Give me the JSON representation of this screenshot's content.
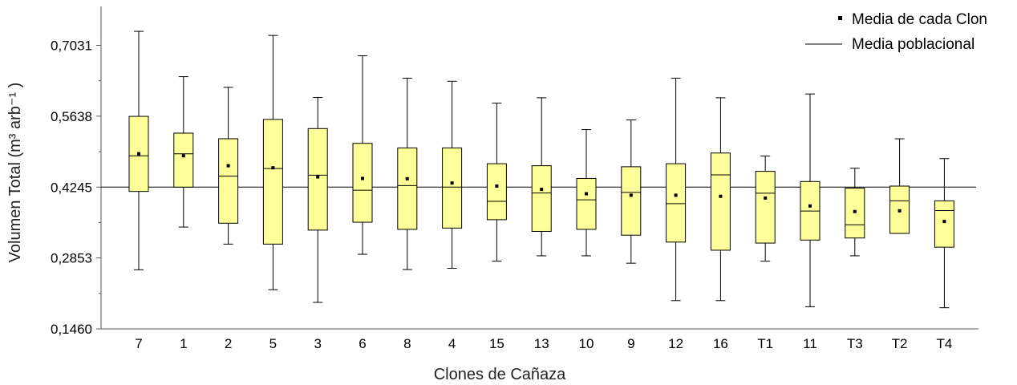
{
  "chart_data": {
    "type": "box",
    "xlabel": "Clones de Cañaza",
    "ylabel": "Volumen Total (m³ arb⁻¹ )",
    "ylim": [
      0.146,
      0.7795
    ],
    "yticks": [
      "0,1460",
      "0,2853",
      "0,4245",
      "0,5638",
      "0,7031"
    ],
    "reference_line": {
      "name": "Media poblacional",
      "value": 0.4245
    },
    "legend": {
      "placement": "top-right",
      "entries": [
        "Media de cada Clon",
        "Media poblacional"
      ]
    },
    "categories": [
      "7",
      "1",
      "2",
      "5",
      "3",
      "6",
      "8",
      "4",
      "15",
      "13",
      "10",
      "9",
      "12",
      "16",
      "T1",
      "11",
      "T3",
      "T2",
      "T4"
    ],
    "boxes": [
      {
        "label": "7",
        "min": 0.262,
        "q1": 0.416,
        "median": 0.486,
        "q3": 0.5635,
        "max": 0.7305,
        "mean": 0.49
      },
      {
        "label": "1",
        "min": 0.346,
        "q1": 0.4245,
        "median": 0.49,
        "q3": 0.5305,
        "max": 0.6415,
        "mean": 0.486
      },
      {
        "label": "2",
        "min": 0.3125,
        "q1": 0.3535,
        "median": 0.446,
        "q3": 0.5195,
        "max": 0.6205,
        "mean": 0.4665
      },
      {
        "label": "5",
        "min": 0.223,
        "q1": 0.3125,
        "median": 0.461,
        "q3": 0.5575,
        "max": 0.7225,
        "mean": 0.4625
      },
      {
        "label": "3",
        "min": 0.198,
        "q1": 0.34,
        "median": 0.448,
        "q3": 0.5395,
        "max": 0.6005,
        "mean": 0.4445
      },
      {
        "label": "6",
        "min": 0.2925,
        "q1": 0.3555,
        "median": 0.4185,
        "q3": 0.5105,
        "max": 0.6825,
        "mean": 0.4415
      },
      {
        "label": "8",
        "min": 0.2625,
        "q1": 0.3415,
        "median": 0.4275,
        "q3": 0.5015,
        "max": 0.6385,
        "mean": 0.441
      },
      {
        "label": "4",
        "min": 0.265,
        "q1": 0.344,
        "median": 0.4245,
        "q3": 0.5015,
        "max": 0.6325,
        "mean": 0.4325
      },
      {
        "label": "15",
        "min": 0.279,
        "q1": 0.3605,
        "median": 0.3965,
        "q3": 0.4705,
        "max": 0.5895,
        "mean": 0.4265
      },
      {
        "label": "13",
        "min": 0.2895,
        "q1": 0.3375,
        "median": 0.413,
        "q3": 0.4665,
        "max": 0.6,
        "mean": 0.42
      },
      {
        "label": "10",
        "min": 0.2895,
        "q1": 0.3415,
        "median": 0.3995,
        "q3": 0.4415,
        "max": 0.5375,
        "mean": 0.4115
      },
      {
        "label": "9",
        "min": 0.275,
        "q1": 0.33,
        "median": 0.414,
        "q3": 0.4645,
        "max": 0.5565,
        "mean": 0.4085
      },
      {
        "label": "12",
        "min": 0.2015,
        "q1": 0.3165,
        "median": 0.392,
        "q3": 0.4705,
        "max": 0.6385,
        "mean": 0.4085
      },
      {
        "label": "16",
        "min": 0.2015,
        "q1": 0.3005,
        "median": 0.4485,
        "q3": 0.4915,
        "max": 0.6,
        "mean": 0.4065
      },
      {
        "label": "T1",
        "min": 0.279,
        "q1": 0.3145,
        "median": 0.4125,
        "q3": 0.4555,
        "max": 0.4855,
        "mean": 0.403
      },
      {
        "label": "11",
        "min": 0.1895,
        "q1": 0.3205,
        "median": 0.3775,
        "q3": 0.4355,
        "max": 0.6075,
        "mean": 0.3875
      },
      {
        "label": "T3",
        "min": 0.2895,
        "q1": 0.3245,
        "median": 0.3505,
        "q3": 0.4225,
        "max": 0.4615,
        "mean": 0.3765
      },
      {
        "label": "T2",
        "min": 0.3335,
        "q1": 0.3335,
        "median": 0.3975,
        "q3": 0.4265,
        "max": 0.5195,
        "mean": 0.378
      },
      {
        "label": "T4",
        "min": 0.1875,
        "q1": 0.3065,
        "median": 0.3785,
        "q3": 0.3975,
        "max": 0.4805,
        "mean": 0.357
      }
    ],
    "grid": false
  }
}
